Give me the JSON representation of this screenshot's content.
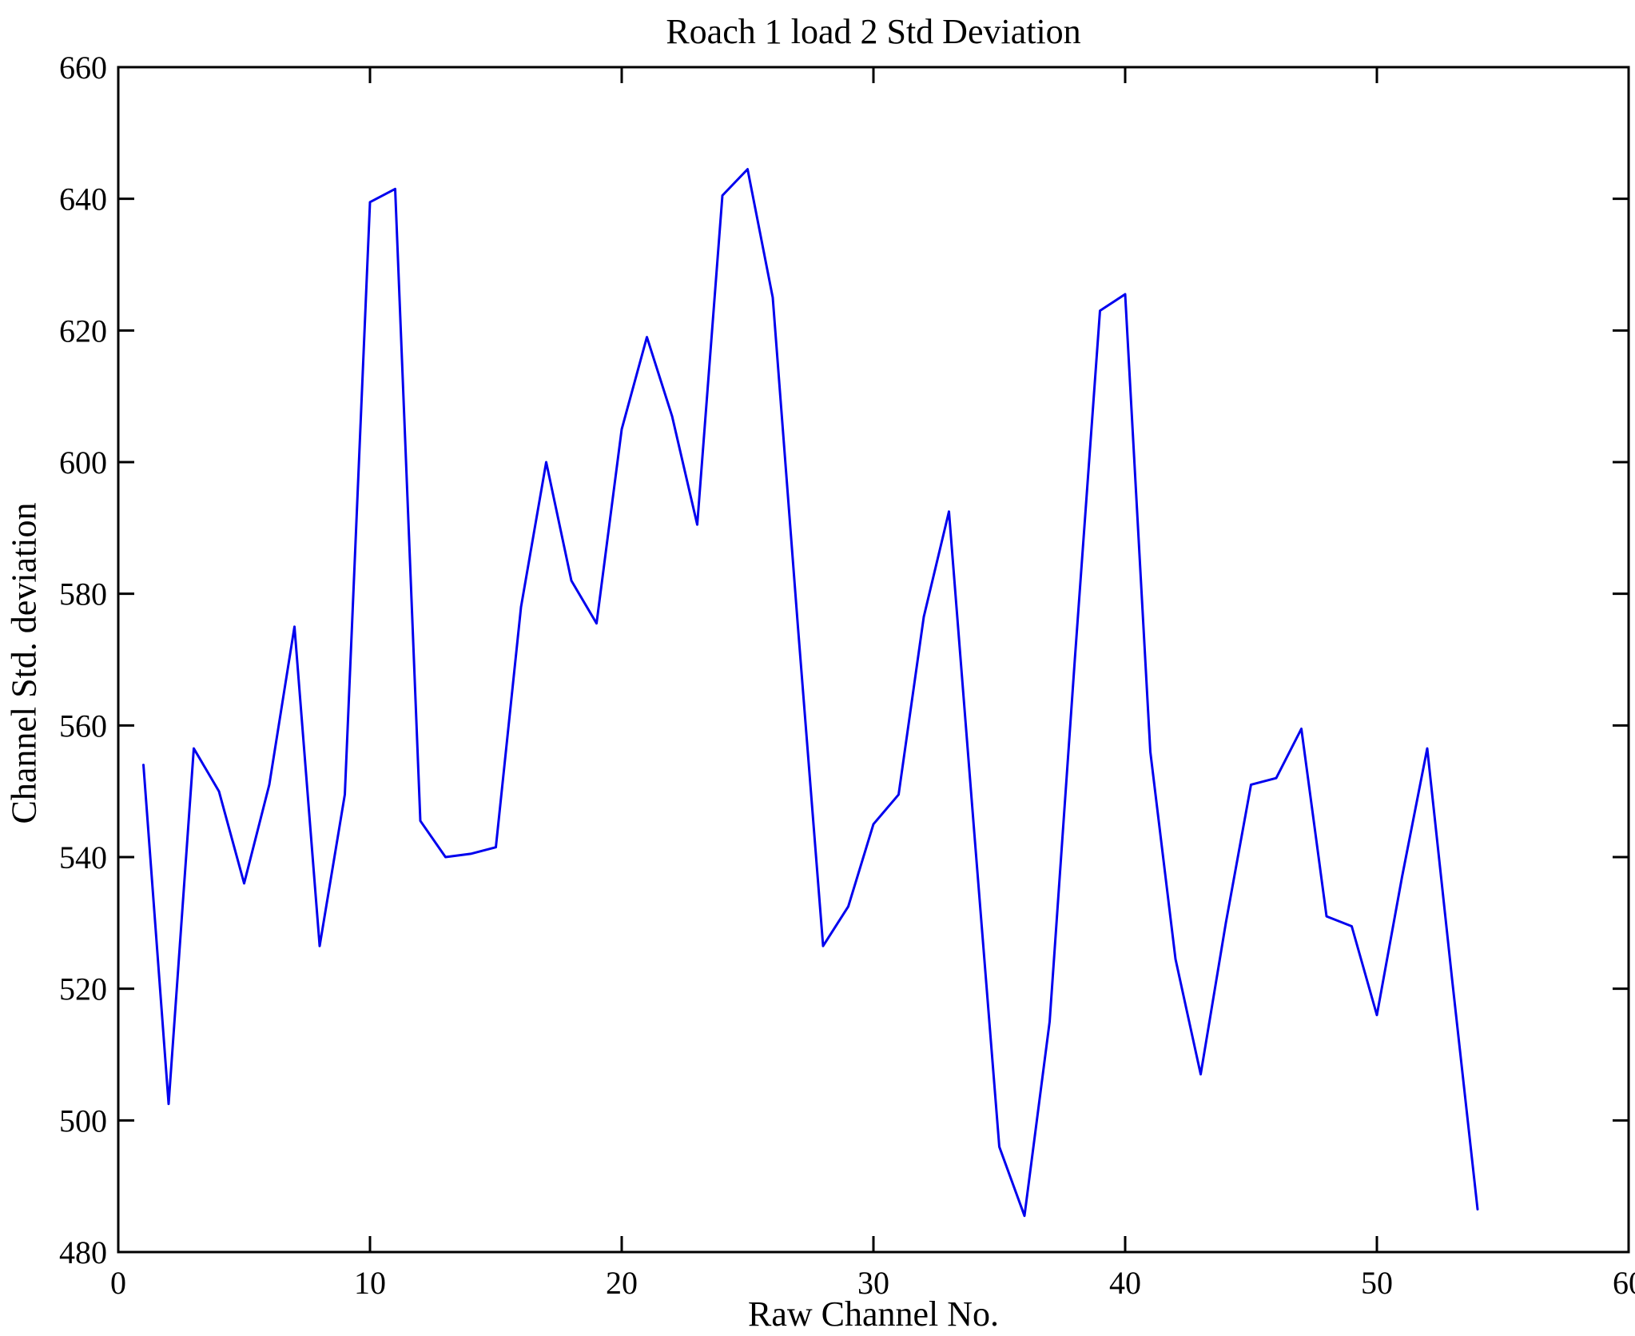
{
  "chart_data": {
    "type": "line",
    "title": "Roach 1 load 2 Std Deviation",
    "xlabel": "Raw Channel No.",
    "ylabel": "Channel Std. deviation",
    "xlim": [
      0,
      60
    ],
    "ylim": [
      480,
      660
    ],
    "x_ticks": [
      0,
      10,
      20,
      30,
      40,
      50,
      60
    ],
    "y_ticks": [
      480,
      500,
      520,
      540,
      560,
      580,
      600,
      620,
      640,
      660
    ],
    "grid": false,
    "legend": "none",
    "line_color": "#0000ee",
    "axis_color": "#000000",
    "series": [
      {
        "name": "Channel Std deviation",
        "x": [
          1,
          2,
          3,
          4,
          5,
          6,
          7,
          8,
          9,
          10,
          11,
          12,
          13,
          14,
          15,
          16,
          17,
          18,
          19,
          20,
          21,
          22,
          23,
          24,
          25,
          26,
          27,
          28,
          29,
          30,
          31,
          32,
          33,
          34,
          35,
          36,
          37,
          38,
          39,
          40,
          41,
          42,
          43,
          44,
          45,
          46,
          47,
          48,
          49,
          50,
          51,
          52,
          53,
          54
        ],
        "y": [
          554,
          502.5,
          556.5,
          550,
          536,
          551,
          575,
          526.5,
          549.5,
          639.5,
          641.5,
          545.5,
          540,
          540.5,
          541.5,
          578,
          600,
          582,
          575.5,
          605,
          619,
          607,
          590.5,
          640.5,
          644.5,
          625,
          575,
          526.5,
          532.5,
          545,
          549.5,
          576.5,
          592.5,
          544,
          496,
          485.5,
          515,
          570,
          623,
          625.5,
          556,
          524.5,
          507,
          530,
          551,
          552,
          559.5,
          531,
          529.5,
          516,
          537,
          556.5,
          521,
          486.5
        ]
      }
    ]
  }
}
